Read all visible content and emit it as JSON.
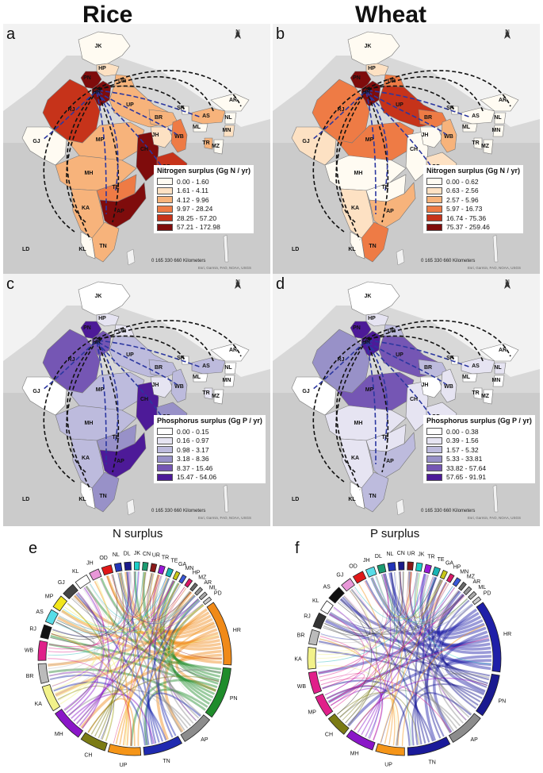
{
  "titles": {
    "rice": "Rice",
    "wheat": "Wheat"
  },
  "colors": {
    "n_ramp": [
      "#fffbf2",
      "#fde1c3",
      "#f7b37b",
      "#ee7b45",
      "#c6331a",
      "#7f0c0c"
    ],
    "p_ramp": [
      "#ffffff",
      "#e6e4f2",
      "#bdbbdd",
      "#9891c8",
      "#7556b4",
      "#4d1a98"
    ],
    "flow": "#111111",
    "flow_inner": "#2b37a0"
  },
  "panels": [
    {
      "label": "a",
      "legend_title": "Nitrogen surplus (Gg N / yr)",
      "legend_items": [
        "0.00 - 1.60",
        "1.61 - 4.11",
        "4.12 - 9.96",
        "9.97 - 28.24",
        "28.25 - 57.20",
        "57.21 - 172.98"
      ],
      "state_values": {
        "JK": 0,
        "HP": 1,
        "PN": 5,
        "HR": 5,
        "UR": 2,
        "RJ": 4,
        "UP": 2,
        "GJ": 0,
        "MP": 2,
        "CH": 5,
        "OD": 4,
        "MH": 2,
        "TE": 3,
        "AP": 5,
        "KA": 2,
        "TN": 2,
        "KL": 0,
        "BR": 2,
        "JH": 1,
        "WB": 3,
        "AS": 2,
        "AR": 0,
        "NL": 0,
        "MN": 1,
        "MZ": 0,
        "TR": 2,
        "ML": 0,
        "SK": 0
      }
    },
    {
      "label": "b",
      "legend_title": "Nitrogen surplus (Gg N / yr)",
      "legend_items": [
        "0.00 - 0.62",
        "0.63 - 2.56",
        "2.57 - 5.96",
        "5.97 - 16.73",
        "16.74 - 75.36",
        "75.37 - 259.46"
      ],
      "state_values": {
        "JK": 0,
        "HP": 1,
        "PN": 5,
        "HR": 5,
        "UR": 3,
        "RJ": 3,
        "UP": 4,
        "GJ": 1,
        "MP": 3,
        "CH": 0,
        "OD": 1,
        "MH": 0,
        "TE": 0,
        "AP": 2,
        "KA": 1,
        "TN": 3,
        "KL": 0,
        "BR": 3,
        "JH": 0,
        "WB": 2,
        "AS": 0,
        "AR": 0,
        "NL": 0,
        "MN": 0,
        "MZ": 0,
        "TR": 0,
        "ML": 0,
        "SK": 0
      }
    },
    {
      "label": "c",
      "legend_title": "Phosphorus surplus (Gg P / yr)",
      "legend_items": [
        "0.00 - 0.15",
        "0.16 - 0.97",
        "0.98 - 3.17",
        "3.18 - 8.36",
        "8.37 - 15.46",
        "15.47 - 54.06"
      ],
      "state_values": {
        "JK": 0,
        "HP": 1,
        "PN": 5,
        "HR": 4,
        "UR": 1,
        "RJ": 4,
        "UP": 2,
        "GJ": 0,
        "MP": 2,
        "CH": 5,
        "OD": 3,
        "MH": 2,
        "TE": 3,
        "AP": 5,
        "KA": 2,
        "TN": 3,
        "KL": 0,
        "BR": 2,
        "JH": 1,
        "WB": 2,
        "AS": 2,
        "AR": 0,
        "NL": 0,
        "MN": 0,
        "MZ": 0,
        "TR": 1,
        "ML": 0,
        "SK": 0
      }
    },
    {
      "label": "d",
      "legend_title": "Phosphorus surplus (Gg P / yr)",
      "legend_items": [
        "0.00 - 0.38",
        "0.39 - 1.56",
        "1.57 - 5.32",
        "5.33 - 33.81",
        "33.82 - 57.64",
        "57.65 - 91.91"
      ],
      "state_values": {
        "JK": 0,
        "HP": 1,
        "PN": 5,
        "HR": 5,
        "UR": 2,
        "RJ": 3,
        "UP": 4,
        "GJ": 0,
        "MP": 4,
        "CH": 1,
        "OD": 1,
        "MH": 1,
        "TE": 1,
        "AP": 2,
        "KA": 1,
        "TN": 2,
        "KL": 0,
        "BR": 2,
        "JH": 0,
        "WB": 1,
        "AS": 1,
        "AR": 0,
        "NL": 1,
        "MN": 0,
        "MZ": 0,
        "TR": 0,
        "ML": 0,
        "SK": 0
      }
    }
  ],
  "map_common": {
    "north_label": "N",
    "scale_text": "0  165  330         660 Kilometers",
    "credit": "Esri, Garmin, FAO, NOAA, USGS",
    "ld": "LD",
    "an": "AN"
  },
  "state_names": [
    "JK",
    "HP",
    "PN",
    "HR",
    "UR",
    "RJ",
    "UP",
    "GJ",
    "MP",
    "CH",
    "OD",
    "MH",
    "TE",
    "AP",
    "KA",
    "TN",
    "KL",
    "BR",
    "JH",
    "WB",
    "AS",
    "AR",
    "NL",
    "MN",
    "MZ",
    "TR",
    "ML",
    "SK"
  ],
  "chords": [
    {
      "label": "e",
      "title": "N surplus",
      "segments": [
        {
          "name": "HR",
          "color": "#f08a18",
          "size": 10
        },
        {
          "name": "PN",
          "color": "#1f8c2b",
          "size": 8
        },
        {
          "name": "AP",
          "color": "#8c8c8c",
          "size": 5
        },
        {
          "name": "TN",
          "color": "#1f2ab0",
          "size": 6
        },
        {
          "name": "UP",
          "color": "#f59518",
          "size": 5
        },
        {
          "name": "CH",
          "color": "#7b7b14",
          "size": 4
        },
        {
          "name": "MH",
          "color": "#8a16c8",
          "size": 5
        },
        {
          "name": "KA",
          "color": "#f2f28a",
          "size": 4
        },
        {
          "name": "BR",
          "color": "#bbbbbb",
          "size": 3
        },
        {
          "name": "WB",
          "color": "#e0208a",
          "size": 3
        },
        {
          "name": "RJ",
          "color": "#111111",
          "size": 2
        },
        {
          "name": "AS",
          "color": "#58dde8",
          "size": 2
        },
        {
          "name": "MP",
          "color": "#f2e61a",
          "size": 2
        },
        {
          "name": "GJ",
          "color": "#444444",
          "size": 2
        },
        {
          "name": "KL",
          "color": "#ffffff",
          "size": 2
        },
        {
          "name": "JH",
          "color": "#e897d8",
          "size": 1.5
        },
        {
          "name": "OD",
          "color": "#e01818",
          "size": 1.5
        },
        {
          "name": "NL",
          "color": "#2235b8",
          "size": 1
        },
        {
          "name": "DL",
          "color": "#1a1a8a",
          "size": 1
        },
        {
          "name": "JK",
          "color": "#1ad0c8",
          "size": 0.8
        },
        {
          "name": "CN",
          "color": "#1a9a70",
          "size": 0.8
        },
        {
          "name": "UR",
          "color": "#8a1818",
          "size": 0.8
        },
        {
          "name": "TR",
          "color": "#9a18d8",
          "size": 0.8
        },
        {
          "name": "TE",
          "color": "#18b4b4",
          "size": 0.8
        },
        {
          "name": "GA",
          "color": "#c8c818",
          "size": 0.6
        },
        {
          "name": "MN",
          "color": "#3a58d8",
          "size": 0.6
        },
        {
          "name": "HP",
          "color": "#d81868",
          "size": 0.6
        },
        {
          "name": "MZ",
          "color": "#6a6a6a",
          "size": 0.5
        },
        {
          "name": "AR",
          "color": "#999999",
          "size": 0.5
        },
        {
          "name": "ML",
          "color": "#aaaaaa",
          "size": 0.5
        },
        {
          "name": "PD",
          "color": "#cccccc",
          "size": 0.5
        }
      ]
    },
    {
      "label": "f",
      "title": "P surplus",
      "segments": [
        {
          "name": "HR",
          "color": "#1f1fa8",
          "size": 10
        },
        {
          "name": "PN",
          "color": "#1a1a90",
          "size": 6
        },
        {
          "name": "AP",
          "color": "#8c8c8c",
          "size": 5
        },
        {
          "name": "TN",
          "color": "#1a1a9a",
          "size": 6
        },
        {
          "name": "UP",
          "color": "#f59518",
          "size": 4
        },
        {
          "name": "MH",
          "color": "#8a16c8",
          "size": 4
        },
        {
          "name": "CH",
          "color": "#7b7b14",
          "size": 3
        },
        {
          "name": "MP",
          "color": "#e0208a",
          "size": 3
        },
        {
          "name": "WB",
          "color": "#e0208a",
          "size": 3
        },
        {
          "name": "KA",
          "color": "#f2f28a",
          "size": 3
        },
        {
          "name": "BR",
          "color": "#bbbbbb",
          "size": 2
        },
        {
          "name": "RJ",
          "color": "#333333",
          "size": 2
        },
        {
          "name": "KL",
          "color": "#ffffff",
          "size": 1.5
        },
        {
          "name": "AS",
          "color": "#111111",
          "size": 2
        },
        {
          "name": "GJ",
          "color": "#e897d8",
          "size": 1.5
        },
        {
          "name": "OD",
          "color": "#e01818",
          "size": 1.5
        },
        {
          "name": "JH",
          "color": "#58dde8",
          "size": 1.2
        },
        {
          "name": "DL",
          "color": "#1a9a70",
          "size": 1
        },
        {
          "name": "NL",
          "color": "#2235b8",
          "size": 1
        },
        {
          "name": "CN",
          "color": "#1a1a8a",
          "size": 0.8
        },
        {
          "name": "UR",
          "color": "#8a1818",
          "size": 0.8
        },
        {
          "name": "JK",
          "color": "#1ad0c8",
          "size": 0.8
        },
        {
          "name": "TR",
          "color": "#9a18d8",
          "size": 0.8
        },
        {
          "name": "TE",
          "color": "#18b4b4",
          "size": 0.8
        },
        {
          "name": "GA",
          "color": "#c8c818",
          "size": 0.6
        },
        {
          "name": "HP",
          "color": "#d81868",
          "size": 0.6
        },
        {
          "name": "MN",
          "color": "#3a58d8",
          "size": 0.6
        },
        {
          "name": "MZ",
          "color": "#6a6a6a",
          "size": 0.5
        },
        {
          "name": "AR",
          "color": "#999999",
          "size": 0.5
        },
        {
          "name": "ML",
          "color": "#aaaaaa",
          "size": 0.5
        },
        {
          "name": "PD",
          "color": "#cccccc",
          "size": 0.5
        }
      ]
    }
  ]
}
